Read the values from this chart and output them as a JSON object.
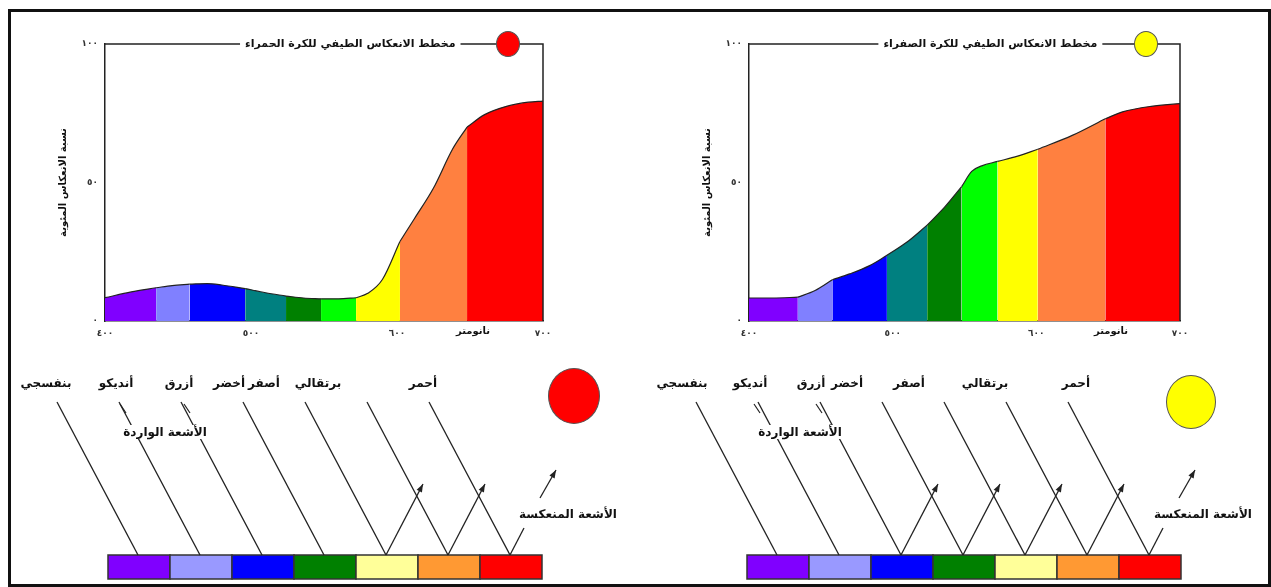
{
  "chart_data": [
    {
      "type": "area",
      "title": "مخطط الانعكاس الطيفي للكرة الحمراء",
      "xlabel": "نانومتر",
      "ylabel": "نسبة الانعكاس المئوية",
      "xlim": [
        400,
        700
      ],
      "ylim": [
        0,
        100
      ],
      "xticks": [
        {
          "value": 400,
          "label": "٤٠٠"
        },
        {
          "value": 500,
          "label": "٥٠٠"
        },
        {
          "value": 600,
          "label": "٦٠٠"
        },
        {
          "value": 700,
          "label": "٧٠٠"
        }
      ],
      "yticks": [
        {
          "value": 0,
          "label": "٠"
        },
        {
          "value": 50,
          "label": "٥٠"
        },
        {
          "value": 100,
          "label": "١٠٠"
        }
      ],
      "grid": false,
      "legend": false,
      "series": [
        {
          "color": "#8000ff",
          "x": [
            400,
            418,
            435
          ],
          "values": [
            8.4,
            10.5,
            12
          ]
        },
        {
          "color": "#8080ff",
          "x": [
            435,
            446,
            458
          ],
          "values": [
            12,
            12.8,
            13.3
          ]
        },
        {
          "color": "#0000ff",
          "x": [
            458,
            470,
            480,
            496
          ],
          "values": [
            13.3,
            13.5,
            13,
            11.7
          ]
        },
        {
          "color": "#008080",
          "x": [
            496,
            510,
            524
          ],
          "values": [
            11.7,
            10.2,
            9
          ]
        },
        {
          "color": "#008000",
          "x": [
            524,
            536,
            548
          ],
          "values": [
            9,
            8.3,
            8
          ]
        },
        {
          "color": "#00ff00",
          "x": [
            548,
            560,
            572
          ],
          "values": [
            8,
            8,
            8.4
          ]
        },
        {
          "color": "#ffff00",
          "x": [
            572,
            580,
            590,
            602
          ],
          "values": [
            8.4,
            10,
            15,
            28.7
          ]
        },
        {
          "color": "#ff8040",
          "x": [
            602,
            612,
            625,
            638,
            648
          ],
          "values": [
            28.7,
            37,
            48,
            62,
            70
          ]
        },
        {
          "color": "#ff0000",
          "x": [
            648,
            660,
            675,
            690,
            700
          ],
          "values": [
            70,
            74.5,
            77.5,
            79,
            79.4
          ]
        }
      ],
      "annotations": [
        "بنفسجي",
        "أنديكو",
        "أزرق",
        "أخضر",
        "أصفر",
        "برتقالي",
        "أحمر",
        "الأشعة الواردة",
        "الأشعة المنعكسة"
      ]
    },
    {
      "type": "area",
      "title": "مخطط الانعكاس الطيفي للكرة الصفراء",
      "xlabel": "نانومتر",
      "ylabel": "نسبة الانعكاس المئوية",
      "xlim": [
        400,
        700
      ],
      "ylim": [
        0,
        100
      ],
      "xticks": [
        {
          "value": 400,
          "label": "٤٠٠"
        },
        {
          "value": 500,
          "label": "٥٠٠"
        },
        {
          "value": 600,
          "label": "٦٠٠"
        },
        {
          "value": 700,
          "label": "٧٠٠"
        }
      ],
      "yticks": [
        {
          "value": 0,
          "label": "٠"
        },
        {
          "value": 50,
          "label": "٥٠"
        },
        {
          "value": 100,
          "label": "١٠٠"
        }
      ],
      "grid": false,
      "legend": false,
      "series": [
        {
          "color": "#8000ff",
          "x": [
            400,
            417,
            434
          ],
          "values": [
            8.3,
            8.3,
            8.6
          ]
        },
        {
          "color": "#8080ff",
          "x": [
            434,
            446,
            458
          ],
          "values": [
            8.6,
            11,
            14.9
          ]
        },
        {
          "color": "#0000ff",
          "x": [
            458,
            470,
            484,
            496
          ],
          "values": [
            14.9,
            17,
            20,
            23.7
          ]
        },
        {
          "color": "#008080",
          "x": [
            496,
            510,
            524
          ],
          "values": [
            23.7,
            28.5,
            34.6
          ]
        },
        {
          "color": "#008000",
          "x": [
            524,
            536,
            548
          ],
          "values": [
            34.6,
            41,
            48.5
          ]
        },
        {
          "color": "#00ff00",
          "x": [
            548,
            555,
            562,
            573
          ],
          "values": [
            48.5,
            54,
            56,
            57.6
          ]
        },
        {
          "color": "#ffff00",
          "x": [
            573,
            587,
            601
          ],
          "values": [
            57.6,
            59.5,
            62
          ]
        },
        {
          "color": "#ff8040",
          "x": [
            601,
            625,
            648
          ],
          "values": [
            62,
            67,
            73
          ]
        },
        {
          "color": "#ff0000",
          "x": [
            648,
            660,
            680,
            700
          ],
          "values": [
            73,
            75.5,
            77.5,
            78.5
          ]
        }
      ],
      "annotations": [
        "بنفسجي",
        "أنديكو",
        "أزرق",
        "أخضر",
        "أصفر",
        "برتقالي",
        "أحمر",
        "الأشعة الواردة",
        "الأشعة المنعكسة"
      ]
    }
  ]
}
